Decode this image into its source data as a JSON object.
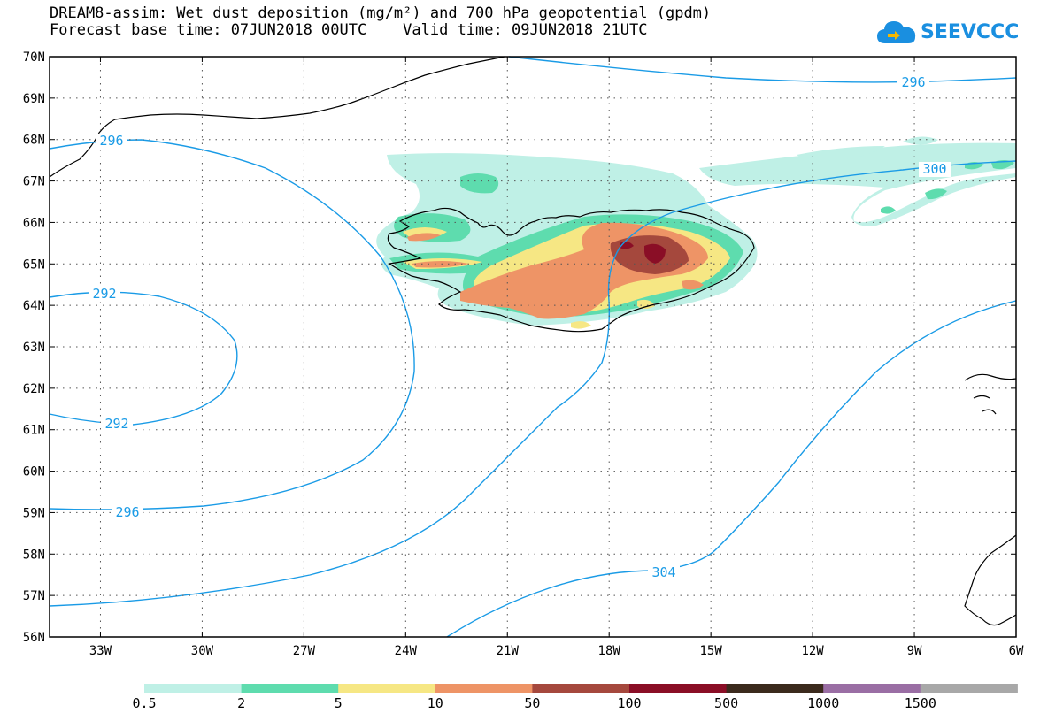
{
  "title": {
    "line1": "DREAM8-assim: Wet dust deposition (mg/m²) and 700 hPa geopotential (gpdm)",
    "line2": "Forecast base time: 07JUN2018 00UTC    Valid time: 09JUN2018 21UTC"
  },
  "logo": {
    "text": "SEEVCCC",
    "icon": "cloud-icon"
  },
  "map": {
    "lon_range": [
      -34.5,
      -6
    ],
    "lat_range": [
      56,
      70
    ],
    "lon_ticks": [
      {
        "lon": -33,
        "label": "33W"
      },
      {
        "lon": -30,
        "label": "30W"
      },
      {
        "lon": -27,
        "label": "27W"
      },
      {
        "lon": -24,
        "label": "24W"
      },
      {
        "lon": -21,
        "label": "21W"
      },
      {
        "lon": -18,
        "label": "18W"
      },
      {
        "lon": -15,
        "label": "15W"
      },
      {
        "lon": -12,
        "label": "12W"
      },
      {
        "lon": -9,
        "label": "9W"
      },
      {
        "lon": -6,
        "label": "6W"
      }
    ],
    "lat_ticks": [
      {
        "lat": 70,
        "label": "70N"
      },
      {
        "lat": 69,
        "label": "69N"
      },
      {
        "lat": 68,
        "label": "68N"
      },
      {
        "lat": 67,
        "label": "67N"
      },
      {
        "lat": 66,
        "label": "66N"
      },
      {
        "lat": 65,
        "label": "65N"
      },
      {
        "lat": 64,
        "label": "64N"
      },
      {
        "lat": 63,
        "label": "63N"
      },
      {
        "lat": 62,
        "label": "62N"
      },
      {
        "lat": 61,
        "label": "61N"
      },
      {
        "lat": 60,
        "label": "60N"
      },
      {
        "lat": 59,
        "label": "59N"
      },
      {
        "lat": 58,
        "label": "58N"
      },
      {
        "lat": 57,
        "label": "57N"
      },
      {
        "lat": 56,
        "label": "56N"
      }
    ],
    "contour_color": "#1a9be6",
    "contour_labels": [
      "296",
      "296",
      "292",
      "292",
      "296",
      "300",
      "304"
    ]
  },
  "legend": {
    "colors": [
      "#bff0e6",
      "#5edcae",
      "#f6e784",
      "#ee9466",
      "#a5483d",
      "#8a0e26",
      "#3b2a1d",
      "#9a6ea4",
      "#a8a8a8"
    ],
    "labels": [
      "0.5",
      "2",
      "5",
      "10",
      "50",
      "100",
      "500",
      "1000",
      "1500"
    ]
  }
}
